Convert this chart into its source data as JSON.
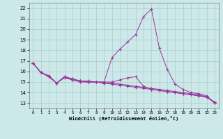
{
  "xlabel": "Windchill (Refroidissement éolien,°C)",
  "ylim": [
    12.5,
    22.5
  ],
  "xlim": [
    -0.5,
    23.5
  ],
  "yticks": [
    13,
    14,
    15,
    16,
    17,
    18,
    19,
    20,
    21,
    22
  ],
  "xticks": [
    0,
    1,
    2,
    3,
    4,
    5,
    6,
    7,
    8,
    9,
    10,
    11,
    12,
    13,
    14,
    15,
    16,
    17,
    18,
    19,
    20,
    21,
    22,
    23
  ],
  "background_color": "#cde8e8",
  "grid_color": "#aacccc",
  "line_color": "#993399",
  "series": [
    [
      16.8,
      15.9,
      15.6,
      14.9,
      15.5,
      15.3,
      15.1,
      15.0,
      15.0,
      14.9,
      14.8,
      14.7,
      14.6,
      14.5,
      14.4,
      14.3,
      14.2,
      14.1,
      14.0,
      13.9,
      13.8,
      13.7,
      13.6,
      13.0
    ],
    [
      16.8,
      15.9,
      15.5,
      14.9,
      15.5,
      15.2,
      15.1,
      15.0,
      15.0,
      15.0,
      15.0,
      15.2,
      15.4,
      15.5,
      14.6,
      14.3,
      14.2,
      14.1,
      14.0,
      13.9,
      13.8,
      13.7,
      13.55,
      13.1
    ],
    [
      16.8,
      15.9,
      15.6,
      14.9,
      15.5,
      15.3,
      15.1,
      15.1,
      15.0,
      15.0,
      17.3,
      18.1,
      18.8,
      19.5,
      21.2,
      21.9,
      18.2,
      16.2,
      14.8,
      14.3,
      14.0,
      13.9,
      13.7,
      13.0
    ],
    [
      16.8,
      15.9,
      15.5,
      14.9,
      15.4,
      15.2,
      15.0,
      15.0,
      15.0,
      14.9,
      14.9,
      14.8,
      14.7,
      14.6,
      14.5,
      14.4,
      14.3,
      14.2,
      14.1,
      14.0,
      13.9,
      13.8,
      13.6,
      13.1
    ]
  ]
}
